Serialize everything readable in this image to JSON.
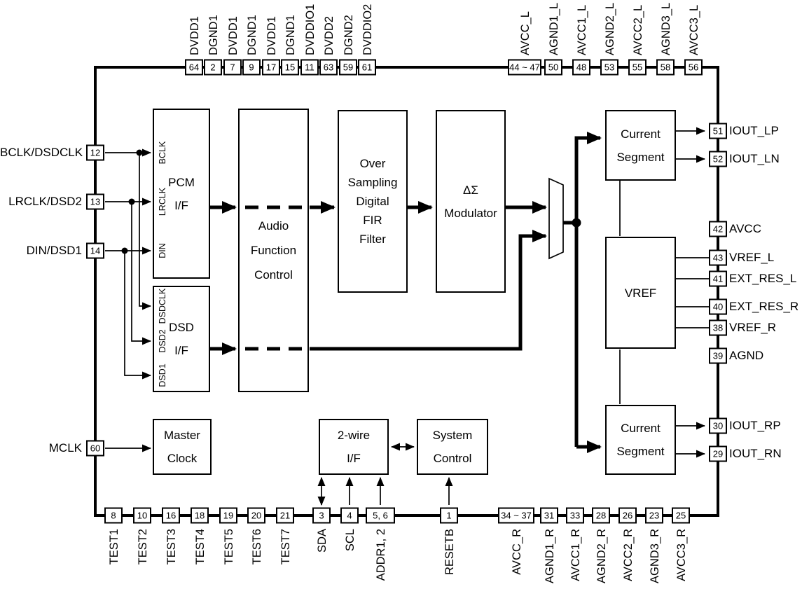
{
  "diagram": {
    "blocks": {
      "pcm": "PCM\nI/F",
      "dsd": "DSD\nI/F",
      "audio": "Audio\nFunction\nControl",
      "fir": "Over\nSampling\nDigital\nFIR\nFilter",
      "modulator": "ΔΣ\nModulator",
      "master_clock": "Master\nClock",
      "two_wire": "2-wire\nI/F",
      "system_control": "System\nControl",
      "current_segment_l": "Current\nSegment",
      "vref": "VREF",
      "current_segment_r": "Current\nSegment"
    },
    "pcm_ports": [
      "BCLK",
      "LRCLK",
      "DIN"
    ],
    "dsd_ports": [
      "DSDCLK",
      "DSD2",
      "DSD1"
    ],
    "pins": {
      "top": [
        {
          "num": "64",
          "name": "DVDD1"
        },
        {
          "num": "2",
          "name": "DGND1"
        },
        {
          "num": "7",
          "name": "DVDD1"
        },
        {
          "num": "9",
          "name": "DGND1"
        },
        {
          "num": "17",
          "name": "DVDD1"
        },
        {
          "num": "15",
          "name": "DGND1"
        },
        {
          "num": "11",
          "name": "DVDDIO1"
        },
        {
          "num": "63",
          "name": "DVDD2"
        },
        {
          "num": "59",
          "name": "DGND2"
        },
        {
          "num": "61",
          "name": "DVDDIO2"
        },
        {
          "num": "44 ~ 47",
          "name": "AVCC_L"
        },
        {
          "num": "50",
          "name": "AGND1_L"
        },
        {
          "num": "48",
          "name": "AVCC1_L"
        },
        {
          "num": "53",
          "name": "AGND2_L"
        },
        {
          "num": "55",
          "name": "AVCC2_L"
        },
        {
          "num": "58",
          "name": "AGND3_L"
        },
        {
          "num": "56",
          "name": "AVCC3_L"
        }
      ],
      "bottom": [
        {
          "num": "8",
          "name": "TEST1"
        },
        {
          "num": "10",
          "name": "TEST2"
        },
        {
          "num": "16",
          "name": "TEST3"
        },
        {
          "num": "18",
          "name": "TEST4"
        },
        {
          "num": "19",
          "name": "TEST5"
        },
        {
          "num": "20",
          "name": "TEST6"
        },
        {
          "num": "21",
          "name": "TEST7"
        },
        {
          "num": "3",
          "name": "SDA"
        },
        {
          "num": "4",
          "name": "SCL"
        },
        {
          "num": "5, 6",
          "name": "ADDR1, 2"
        },
        {
          "num": "1",
          "name": "RESETB"
        },
        {
          "num": "34 ~ 37",
          "name": "AVCC_R"
        },
        {
          "num": "31",
          "name": "AGND1_R"
        },
        {
          "num": "33",
          "name": "AVCC1_R"
        },
        {
          "num": "28",
          "name": "AGND2_R"
        },
        {
          "num": "26",
          "name": "AVCC2_R"
        },
        {
          "num": "23",
          "name": "AGND3_R"
        },
        {
          "num": "25",
          "name": "AVCC3_R"
        }
      ],
      "left": [
        {
          "num": "12",
          "name": "BCLK/DSDCLK"
        },
        {
          "num": "13",
          "name": "LRCLK/DSD2"
        },
        {
          "num": "14",
          "name": "DIN/DSD1"
        },
        {
          "num": "60",
          "name": "MCLK"
        }
      ],
      "right": [
        {
          "num": "51",
          "name": "IOUT_LP"
        },
        {
          "num": "52",
          "name": "IOUT_LN"
        },
        {
          "num": "42",
          "name": "AVCC"
        },
        {
          "num": "43",
          "name": "VREF_L"
        },
        {
          "num": "41",
          "name": "EXT_RES_L"
        },
        {
          "num": "40",
          "name": "EXT_RES_R"
        },
        {
          "num": "38",
          "name": "VREF_R"
        },
        {
          "num": "39",
          "name": "AGND"
        },
        {
          "num": "30",
          "name": "IOUT_RP"
        },
        {
          "num": "29",
          "name": "IOUT_RN"
        }
      ]
    }
  }
}
